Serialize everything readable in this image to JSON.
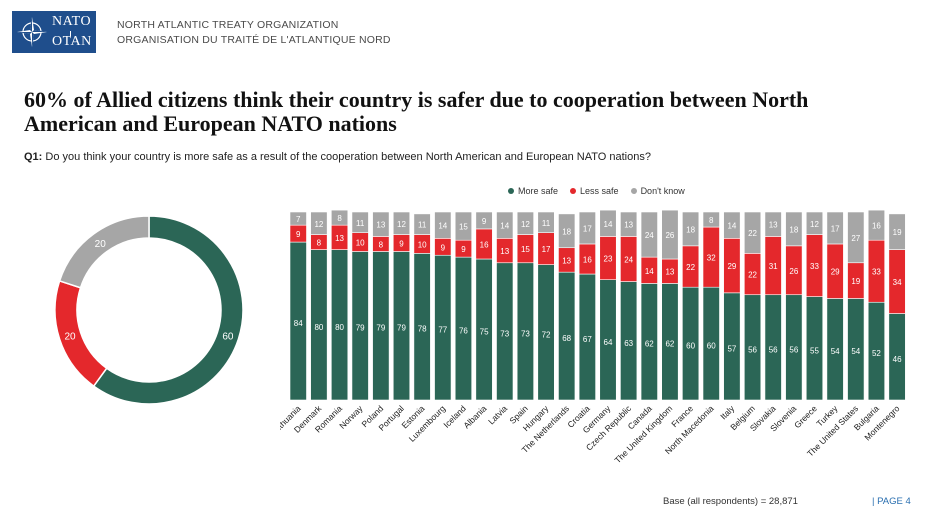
{
  "header": {
    "logo_top": "NATO",
    "logo_bottom": "OTAN",
    "org_en": "NORTH ATLANTIC TREATY ORGANIZATION",
    "org_fr": "ORGANISATION DU TRAITÉ DE L'ATLANTIQUE NORD"
  },
  "title": "60% of Allied citizens think their country is safer due to cooperation between North American and European NATO nations",
  "question": {
    "prefix": "Q1:",
    "text": "Do you think your country is more safe as a result of the cooperation between North American and European NATO nations?"
  },
  "footer": {
    "base": "Base (all respondents) = 28,871",
    "page": "| PAGE 4"
  },
  "colors": {
    "more_safe": "#2b6656",
    "less_safe": "#e4282c",
    "dont_know": "#a6a6a6"
  },
  "chart_data": [
    {
      "type": "pie",
      "variant": "donut",
      "slices": [
        {
          "name": "More safe",
          "value": 60
        },
        {
          "name": "Less safe",
          "value": 20
        },
        {
          "name": "Don't know",
          "value": 20
        }
      ]
    },
    {
      "type": "bar",
      "stacked": true,
      "legend_position": "top",
      "categories": [
        "Lithuania",
        "Denmark",
        "Romania",
        "Norway",
        "Poland",
        "Portugal",
        "Estonia",
        "Luxembourg",
        "Iceland",
        "Albania",
        "Latvia",
        "Spain",
        "Hungary",
        "The Netherlands",
        "Croatia",
        "Germany",
        "Czech Republic",
        "Canada",
        "The United Kingdom",
        "France",
        "North Macedonia",
        "Italy",
        "Belgium",
        "Slovakia",
        "Slovenia",
        "Greece",
        "Turkey",
        "The United States",
        "Bulgaria",
        "Montenegro"
      ],
      "series": [
        {
          "name": "More safe",
          "values": [
            84,
            80,
            80,
            79,
            79,
            79,
            78,
            77,
            76,
            75,
            73,
            73,
            72,
            68,
            67,
            64,
            63,
            62,
            62,
            60,
            60,
            57,
            56,
            56,
            56,
            55,
            54,
            54,
            52,
            46
          ]
        },
        {
          "name": "Less safe",
          "values": [
            9,
            8,
            13,
            10,
            8,
            9,
            10,
            9,
            9,
            16,
            13,
            15,
            17,
            13,
            16,
            23,
            24,
            14,
            13,
            22,
            32,
            29,
            22,
            31,
            26,
            33,
            29,
            19,
            33,
            34
          ]
        },
        {
          "name": "Don't know",
          "values": [
            7,
            12,
            8,
            11,
            13,
            12,
            11,
            14,
            15,
            9,
            14,
            12,
            11,
            18,
            17,
            14,
            13,
            24,
            26,
            18,
            8,
            14,
            22,
            13,
            18,
            12,
            17,
            27,
            16,
            19
          ]
        }
      ],
      "ylim": [
        0,
        100
      ]
    }
  ]
}
